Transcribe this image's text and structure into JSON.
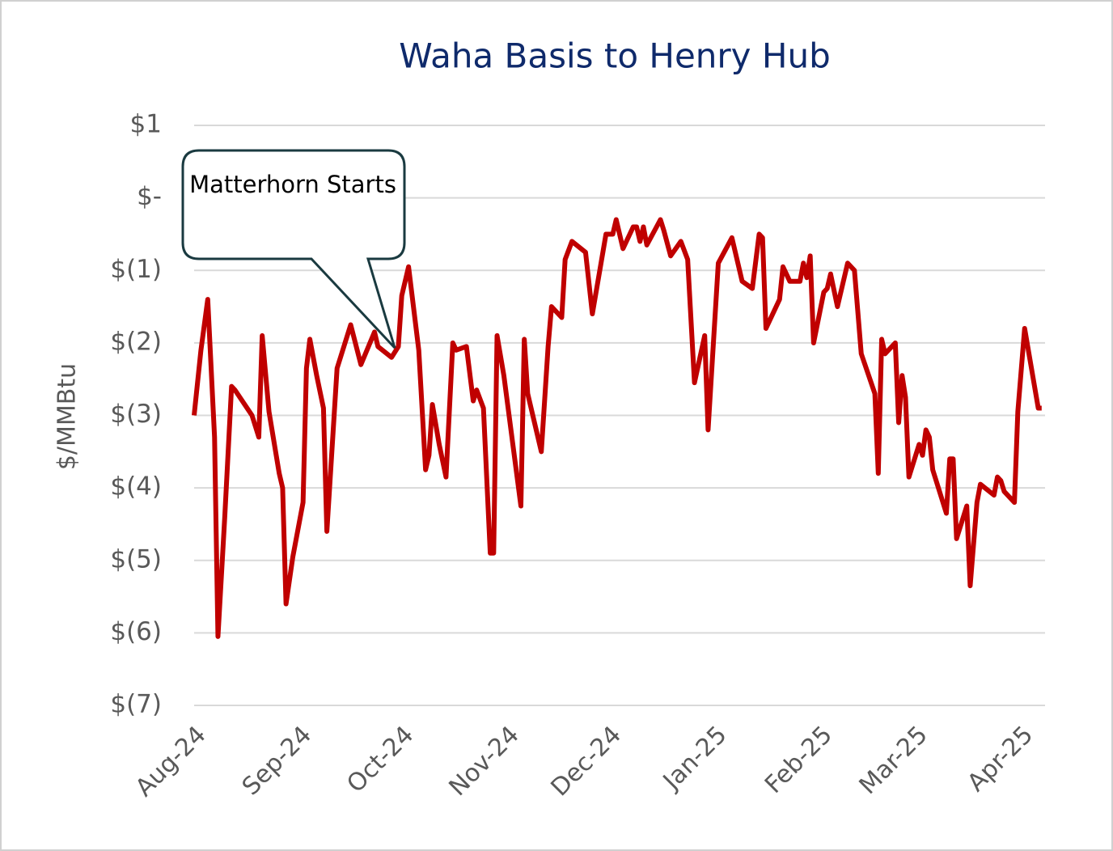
{
  "chart_data": {
    "type": "line",
    "title": "Waha Basis to Henry Hub",
    "y_label": "$/MMBtu",
    "annotation": "Matterhorn Starts",
    "x": [
      0,
      2,
      4,
      6,
      7,
      9,
      11,
      12,
      17,
      19,
      20,
      22,
      25,
      26,
      27,
      29,
      32,
      33,
      34,
      36,
      38,
      39,
      42,
      46,
      49,
      53,
      54,
      58,
      60,
      61,
      63,
      66,
      68,
      69,
      70,
      72,
      74,
      76,
      77,
      80,
      82,
      83,
      85,
      87,
      88,
      89,
      91,
      96,
      97,
      98,
      102,
      104,
      105,
      108,
      109,
      111,
      115,
      117,
      121,
      123,
      124,
      126,
      129,
      130,
      131,
      132,
      133,
      137,
      138,
      140,
      143,
      145,
      147,
      150,
      151,
      154,
      158,
      161,
      164,
      166,
      167,
      168,
      172,
      173,
      175,
      178,
      179,
      180,
      181,
      182,
      185,
      186,
      187,
      189,
      192,
      194,
      196,
      200,
      201,
      202,
      203,
      206,
      207,
      208,
      209,
      210,
      213,
      214,
      215,
      216,
      217,
      221,
      222,
      223,
      224,
      227,
      228,
      230,
      231,
      235,
      236,
      237,
      238,
      241,
      242,
      244,
      248,
      249
    ],
    "series": [
      {
        "name": "Waha Basis",
        "color": "#c00000",
        "values": [
          -3.0,
          -2.1,
          -1.4,
          -3.3,
          -6.05,
          -4.4,
          -2.6,
          -2.65,
          -3.0,
          -3.3,
          -1.9,
          -2.95,
          -3.8,
          -4.0,
          -5.6,
          -4.95,
          -4.2,
          -2.35,
          -1.95,
          -2.45,
          -2.9,
          -4.6,
          -2.35,
          -1.75,
          -2.3,
          -1.85,
          -2.05,
          -2.2,
          -2.05,
          -1.35,
          -0.95,
          -2.1,
          -3.75,
          -3.55,
          -2.85,
          -3.4,
          -3.85,
          -2.0,
          -2.1,
          -2.05,
          -2.8,
          -2.65,
          -2.9,
          -4.9,
          -4.9,
          -1.9,
          -2.45,
          -4.25,
          -1.95,
          -2.7,
          -3.5,
          -2.05,
          -1.5,
          -1.65,
          -0.85,
          -0.6,
          -0.75,
          -1.6,
          -0.5,
          -0.5,
          -0.3,
          -0.7,
          -0.4,
          -0.4,
          -0.6,
          -0.4,
          -0.65,
          -0.3,
          -0.45,
          -0.8,
          -0.6,
          -0.85,
          -2.55,
          -1.9,
          -3.2,
          -0.9,
          -0.55,
          -1.15,
          -1.25,
          -0.5,
          -0.55,
          -1.8,
          -1.4,
          -0.95,
          -1.15,
          -1.15,
          -0.9,
          -1.1,
          -0.8,
          -2.0,
          -1.3,
          -1.25,
          -1.05,
          -1.5,
          -0.9,
          -1.0,
          -2.15,
          -2.7,
          -3.8,
          -1.95,
          -2.15,
          -2.0,
          -3.1,
          -2.45,
          -2.75,
          -3.85,
          -3.4,
          -3.55,
          -3.2,
          -3.3,
          -3.75,
          -4.35,
          -3.6,
          -3.6,
          -4.7,
          -4.25,
          -5.35,
          -4.2,
          -3.95,
          -4.1,
          -3.85,
          -3.9,
          -4.05,
          -4.2,
          -2.95,
          -1.8,
          -2.9,
          -2.9
        ]
      }
    ],
    "xlim": [
      0,
      250
    ],
    "xticks": [
      {
        "value": 0,
        "label": "Aug-24"
      },
      {
        "value": 31,
        "label": "Sep-24"
      },
      {
        "value": 61,
        "label": "Oct-24"
      },
      {
        "value": 92,
        "label": "Nov-24"
      },
      {
        "value": 122,
        "label": "Dec-24"
      },
      {
        "value": 153,
        "label": "Jan-25"
      },
      {
        "value": 184,
        "label": "Feb-25"
      },
      {
        "value": 212,
        "label": "Mar-25"
      },
      {
        "value": 243,
        "label": "Apr-25"
      }
    ],
    "ylim": [
      -7,
      1
    ],
    "yticks": [
      {
        "value": 1,
        "label": "$1"
      },
      {
        "value": 0,
        "label": "$-"
      },
      {
        "value": -1,
        "label": "$(1)"
      },
      {
        "value": -2,
        "label": "$(2)"
      },
      {
        "value": -3,
        "label": "$(3)"
      },
      {
        "value": -4,
        "label": "$(4)"
      },
      {
        "value": -5,
        "label": "$(5)"
      },
      {
        "value": -6,
        "label": "$(6)"
      },
      {
        "value": -7,
        "label": "$(7)"
      }
    ],
    "grid": true
  }
}
